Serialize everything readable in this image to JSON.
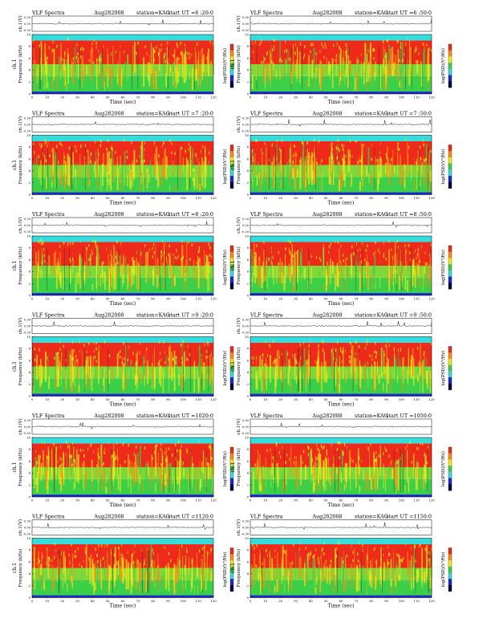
{
  "chart_data": [
    {
      "type": "heatmap",
      "title_left": "VLF Spectra",
      "date": "Aug282008",
      "station": "station=KAG",
      "start": "start UT =6 :20:0",
      "waveform_label": "ch.1(V)",
      "spectrum_label": "ch.1",
      "freq_label": "Frequency (kHz)",
      "xlabel": "Time (sec)",
      "colorbar_label": "log(PSD)(V²/Hz)",
      "xlim": [
        0,
        120
      ],
      "xticks": [
        0,
        10,
        20,
        30,
        40,
        50,
        60,
        70,
        80,
        90,
        100,
        110,
        120
      ],
      "ylim": [
        0,
        10
      ],
      "yticks": [
        0,
        2,
        4,
        6,
        8,
        10
      ],
      "wave_ylim": [
        -0.3,
        0.3
      ],
      "wave_yticks": [
        "0.30",
        "0.00",
        "-0.30"
      ],
      "bands": [
        {
          "range": [
            0,
            0.4
          ],
          "level": "blue"
        },
        {
          "range": [
            0.4,
            3
          ],
          "level": "green"
        },
        {
          "range": [
            3,
            5
          ],
          "level": "green-yellow"
        },
        {
          "range": [
            5,
            9
          ],
          "level": "red"
        },
        {
          "range": [
            9,
            10
          ],
          "level": "cyan"
        }
      ]
    },
    {
      "type": "heatmap",
      "title_left": "VLF Spectra",
      "date": "Aug282008",
      "station": "station=KAG",
      "start": "start UT =6 :50:0",
      "waveform_label": "ch.1(V)",
      "spectrum_label": "ch.1",
      "freq_label": "Frequency (kHz)",
      "xlabel": "Time (sec)",
      "colorbar_label": "log(PSD)(V²/Hz)",
      "xlim": [
        0,
        120
      ],
      "xticks": [
        0,
        10,
        20,
        30,
        40,
        50,
        60,
        70,
        80,
        90,
        100,
        110,
        120
      ],
      "ylim": [
        0,
        10
      ],
      "yticks": [
        0,
        2,
        4,
        6,
        8,
        10
      ],
      "wave_ylim": [
        -0.3,
        0.3
      ],
      "wave_yticks": [
        "0.30",
        "0.00",
        "-0.30"
      ],
      "bands": [
        {
          "range": [
            0,
            0.4
          ],
          "level": "blue"
        },
        {
          "range": [
            0.4,
            3
          ],
          "level": "green"
        },
        {
          "range": [
            3,
            5
          ],
          "level": "green-yellow"
        },
        {
          "range": [
            5,
            9
          ],
          "level": "red"
        },
        {
          "range": [
            9,
            10
          ],
          "level": "cyan"
        }
      ]
    },
    {
      "type": "heatmap",
      "title_left": "VLF Spectra",
      "date": "Aug282008",
      "station": "station=KAG",
      "start": "start UT =7 :20:0",
      "waveform_label": "ch.1(V)",
      "spectrum_label": "ch.1",
      "freq_label": "Frequency (kHz)",
      "xlabel": "Time (sec)",
      "colorbar_label": "log(PSD)(V²/Hz)",
      "xlim": [
        0,
        120
      ],
      "xticks": [
        0,
        10,
        20,
        30,
        40,
        50,
        60,
        70,
        80,
        90,
        100,
        110,
        120
      ],
      "ylim": [
        0,
        10
      ],
      "yticks": [
        0,
        2,
        4,
        6,
        8,
        10
      ],
      "wave_ylim": [
        -0.3,
        0.3
      ],
      "wave_yticks": [
        "0.30",
        "0.00",
        "-0.30"
      ],
      "bands": [
        {
          "range": [
            0,
            0.4
          ],
          "level": "blue"
        },
        {
          "range": [
            0.4,
            3
          ],
          "level": "green"
        },
        {
          "range": [
            3,
            5
          ],
          "level": "green-yellow"
        },
        {
          "range": [
            5,
            9
          ],
          "level": "red"
        },
        {
          "range": [
            9,
            10
          ],
          "level": "cyan"
        }
      ]
    },
    {
      "type": "heatmap",
      "title_left": "VLF Spectra",
      "date": "Aug282008",
      "station": "station=KAG",
      "start": "start UT =7 :50:0",
      "waveform_label": "ch.1(V)",
      "spectrum_label": "ch.1",
      "freq_label": "Frequency (kHz)",
      "xlabel": "Time (sec)",
      "colorbar_label": "log(PSD)(V²/Hz)",
      "xlim": [
        0,
        120
      ],
      "xticks": [
        0,
        10,
        20,
        30,
        40,
        50,
        60,
        70,
        80,
        90,
        100,
        110,
        120
      ],
      "ylim": [
        0,
        10
      ],
      "yticks": [
        0,
        2,
        4,
        6,
        8,
        10
      ],
      "wave_ylim": [
        -0.3,
        0.3
      ],
      "wave_yticks": [
        "0.30",
        "0.00",
        "-0.30"
      ],
      "bands": [
        {
          "range": [
            0,
            0.4
          ],
          "level": "blue"
        },
        {
          "range": [
            0.4,
            3
          ],
          "level": "green"
        },
        {
          "range": [
            3,
            5
          ],
          "level": "green-yellow"
        },
        {
          "range": [
            5,
            9
          ],
          "level": "red"
        },
        {
          "range": [
            9,
            10
          ],
          "level": "cyan"
        }
      ]
    },
    {
      "type": "heatmap",
      "title_left": "VLF Spectra",
      "date": "Aug282008",
      "station": "station=KAG",
      "start": "start UT =8 :20:0",
      "waveform_label": "ch.1(V)",
      "spectrum_label": "ch.1",
      "freq_label": "Frequency (kHz)",
      "xlabel": "Time (sec)",
      "colorbar_label": "log(PSD)(V²/Hz)",
      "xlim": [
        0,
        120
      ],
      "xticks": [
        0,
        10,
        20,
        30,
        40,
        50,
        60,
        70,
        80,
        90,
        100,
        110,
        120
      ],
      "ylim": [
        0,
        10
      ],
      "yticks": [
        0,
        2,
        4,
        6,
        8,
        10
      ],
      "wave_ylim": [
        -0.3,
        0.3
      ],
      "wave_yticks": [
        "0.30",
        "0.00",
        "-0.30"
      ],
      "bands": [
        {
          "range": [
            0,
            0.4
          ],
          "level": "blue"
        },
        {
          "range": [
            0.4,
            3
          ],
          "level": "green"
        },
        {
          "range": [
            3,
            5
          ],
          "level": "green-yellow"
        },
        {
          "range": [
            5,
            9
          ],
          "level": "red"
        },
        {
          "range": [
            9,
            10
          ],
          "level": "cyan"
        }
      ]
    },
    {
      "type": "heatmap",
      "title_left": "VLF Spectra",
      "date": "Aug282008",
      "station": "station=KAG",
      "start": "start UT =8 :50:0",
      "waveform_label": "ch.1(V)",
      "spectrum_label": "ch.1",
      "freq_label": "Frequency (kHz)",
      "xlabel": "Time (sec)",
      "colorbar_label": "log(PSD)(V²/Hz)",
      "xlim": [
        0,
        120
      ],
      "xticks": [
        0,
        10,
        20,
        30,
        40,
        50,
        60,
        70,
        80,
        90,
        100,
        110,
        120
      ],
      "ylim": [
        0,
        10
      ],
      "yticks": [
        0,
        2,
        4,
        6,
        8,
        10
      ],
      "wave_ylim": [
        -0.3,
        0.3
      ],
      "wave_yticks": [
        "0.30",
        "0.00",
        "-0.30"
      ],
      "bands": [
        {
          "range": [
            0,
            0.4
          ],
          "level": "blue"
        },
        {
          "range": [
            0.4,
            3
          ],
          "level": "green"
        },
        {
          "range": [
            3,
            5
          ],
          "level": "green-yellow"
        },
        {
          "range": [
            5,
            9
          ],
          "level": "red"
        },
        {
          "range": [
            9,
            10
          ],
          "level": "cyan"
        }
      ]
    },
    {
      "type": "heatmap",
      "title_left": "VLF Spectra",
      "date": "Aug282008",
      "station": "station=KAG",
      "start": "start UT =9 :20:0",
      "waveform_label": "ch.1(V)",
      "spectrum_label": "ch.1",
      "freq_label": "Frequency (kHz)",
      "xlabel": "Time (sec)",
      "colorbar_label": "log(PSD)(V²/Hz)",
      "xlim": [
        0,
        120
      ],
      "xticks": [
        0,
        10,
        20,
        30,
        40,
        50,
        60,
        70,
        80,
        90,
        100,
        110,
        120
      ],
      "ylim": [
        0,
        10
      ],
      "yticks": [
        0,
        2,
        4,
        6,
        8,
        10
      ],
      "wave_ylim": [
        -0.3,
        0.3
      ],
      "wave_yticks": [
        "0.30",
        "0.00",
        "-0.30"
      ],
      "bands": [
        {
          "range": [
            0,
            0.4
          ],
          "level": "blue"
        },
        {
          "range": [
            0.4,
            3
          ],
          "level": "green"
        },
        {
          "range": [
            3,
            5
          ],
          "level": "green-yellow"
        },
        {
          "range": [
            5,
            9
          ],
          "level": "red"
        },
        {
          "range": [
            9,
            10
          ],
          "level": "cyan"
        }
      ]
    },
    {
      "type": "heatmap",
      "title_left": "VLF Spectra",
      "date": "Aug282008",
      "station": "station=KAG",
      "start": "start UT =9 :50:0",
      "waveform_label": "ch.1(V)",
      "spectrum_label": "ch.1",
      "freq_label": "Frequency (kHz)",
      "xlabel": "Time (sec)",
      "colorbar_label": "log(PSD)(V²/Hz)",
      "xlim": [
        0,
        120
      ],
      "xticks": [
        0,
        10,
        20,
        30,
        40,
        50,
        60,
        70,
        80,
        90,
        100,
        110,
        120
      ],
      "ylim": [
        0,
        10
      ],
      "yticks": [
        0,
        2,
        4,
        6,
        8,
        10
      ],
      "wave_ylim": [
        -0.3,
        0.3
      ],
      "wave_yticks": [
        "0.30",
        "0.00",
        "-0.30"
      ],
      "bands": [
        {
          "range": [
            0,
            0.4
          ],
          "level": "blue"
        },
        {
          "range": [
            0.4,
            3
          ],
          "level": "green"
        },
        {
          "range": [
            3,
            5
          ],
          "level": "green-yellow"
        },
        {
          "range": [
            5,
            9
          ],
          "level": "red"
        },
        {
          "range": [
            9,
            10
          ],
          "level": "cyan"
        }
      ]
    },
    {
      "type": "heatmap",
      "title_left": "VLF Spectra",
      "date": "Aug282008",
      "station": "station=KAG",
      "start": "start UT =1020:0",
      "waveform_label": "ch.1(V)",
      "spectrum_label": "ch.1",
      "freq_label": "Frequency (kHz)",
      "xlabel": "Time (sec)",
      "colorbar_label": "log(PSD)(V²/Hz)",
      "xlim": [
        0,
        120
      ],
      "xticks": [
        0,
        10,
        20,
        30,
        40,
        50,
        60,
        70,
        80,
        90,
        100,
        110,
        120
      ],
      "ylim": [
        0,
        10
      ],
      "yticks": [
        0,
        2,
        4,
        6,
        8,
        10
      ],
      "wave_ylim": [
        -0.3,
        0.3
      ],
      "wave_yticks": [
        "0.30",
        "0.00",
        "-0.30"
      ],
      "bands": [
        {
          "range": [
            0,
            0.4
          ],
          "level": "blue"
        },
        {
          "range": [
            0.4,
            3
          ],
          "level": "green"
        },
        {
          "range": [
            3,
            5
          ],
          "level": "green-yellow"
        },
        {
          "range": [
            5,
            9
          ],
          "level": "red"
        },
        {
          "range": [
            9,
            10
          ],
          "level": "cyan"
        }
      ]
    },
    {
      "type": "heatmap",
      "title_left": "VLF Spectra",
      "date": "Aug282008",
      "station": "station=KAG",
      "start": "start UT =1050:0",
      "waveform_label": "ch.1(V)",
      "spectrum_label": "ch.1",
      "freq_label": "Frequency (kHz)",
      "xlabel": "Time (sec)",
      "colorbar_label": "log(PSD)(V²/Hz)",
      "xlim": [
        0,
        120
      ],
      "xticks": [
        0,
        10,
        20,
        30,
        40,
        50,
        60,
        70,
        80,
        90,
        100,
        110,
        120
      ],
      "ylim": [
        0,
        10
      ],
      "yticks": [
        0,
        2,
        4,
        6,
        8,
        10
      ],
      "wave_ylim": [
        -0.3,
        0.3
      ],
      "wave_yticks": [
        "0.30",
        "0.00",
        "-0.30"
      ],
      "bands": [
        {
          "range": [
            0,
            0.4
          ],
          "level": "blue"
        },
        {
          "range": [
            0.4,
            3
          ],
          "level": "green"
        },
        {
          "range": [
            3,
            5
          ],
          "level": "green-yellow"
        },
        {
          "range": [
            5,
            9
          ],
          "level": "red"
        },
        {
          "range": [
            9,
            10
          ],
          "level": "cyan"
        }
      ]
    },
    {
      "type": "heatmap",
      "title_left": "VLF Spectra",
      "date": "Aug282008",
      "station": "station=KAG",
      "start": "start UT =1120:0",
      "waveform_label": "ch.1(V)",
      "spectrum_label": "ch.1",
      "freq_label": "Frequency (kHz)",
      "xlabel": "Time (sec)",
      "colorbar_label": "log(PSD)(V²/Hz)",
      "xlim": [
        0,
        120
      ],
      "xticks": [
        0,
        10,
        20,
        30,
        40,
        50,
        60,
        70,
        80,
        90,
        100,
        110,
        120
      ],
      "ylim": [
        0,
        10
      ],
      "yticks": [
        0,
        2,
        4,
        6,
        8,
        10
      ],
      "wave_ylim": [
        -0.3,
        0.3
      ],
      "wave_yticks": [
        "0.30",
        "0.00",
        "-0.30"
      ],
      "bands": [
        {
          "range": [
            0,
            0.4
          ],
          "level": "blue"
        },
        {
          "range": [
            0.4,
            3
          ],
          "level": "green"
        },
        {
          "range": [
            3,
            5
          ],
          "level": "green-yellow"
        },
        {
          "range": [
            5,
            9
          ],
          "level": "red"
        },
        {
          "range": [
            9,
            10
          ],
          "level": "cyan"
        }
      ]
    },
    {
      "type": "heatmap",
      "title_left": "VLF Spectra",
      "date": "Aug282008",
      "station": "station=KAG",
      "start": "start UT =1150:0",
      "waveform_label": "ch.1(V)",
      "spectrum_label": "ch.1",
      "freq_label": "Frequency (kHz)",
      "xlabel": "Time (sec)",
      "colorbar_label": "log(PSD)(V²/Hz)",
      "xlim": [
        0,
        120
      ],
      "xticks": [
        0,
        10,
        20,
        30,
        40,
        50,
        60,
        70,
        80,
        90,
        100,
        110,
        120
      ],
      "ylim": [
        0,
        10
      ],
      "yticks": [
        0,
        2,
        4,
        6,
        8,
        10
      ],
      "wave_ylim": [
        -0.3,
        0.3
      ],
      "wave_yticks": [
        "0.30",
        "0.00",
        "-0.30"
      ],
      "bands": [
        {
          "range": [
            0,
            0.4
          ],
          "level": "blue"
        },
        {
          "range": [
            0.4,
            3
          ],
          "level": "green"
        },
        {
          "range": [
            3,
            5
          ],
          "level": "green-yellow"
        },
        {
          "range": [
            5,
            9
          ],
          "level": "red"
        },
        {
          "range": [
            9,
            10
          ],
          "level": "cyan"
        }
      ]
    }
  ],
  "colors": {
    "cyan": "#33dddd",
    "red": "#ee2a1a",
    "orange": "#ff8a10",
    "yellow": "#f4ec18",
    "green": "#3cd048",
    "blue": "#1a2ad0"
  }
}
